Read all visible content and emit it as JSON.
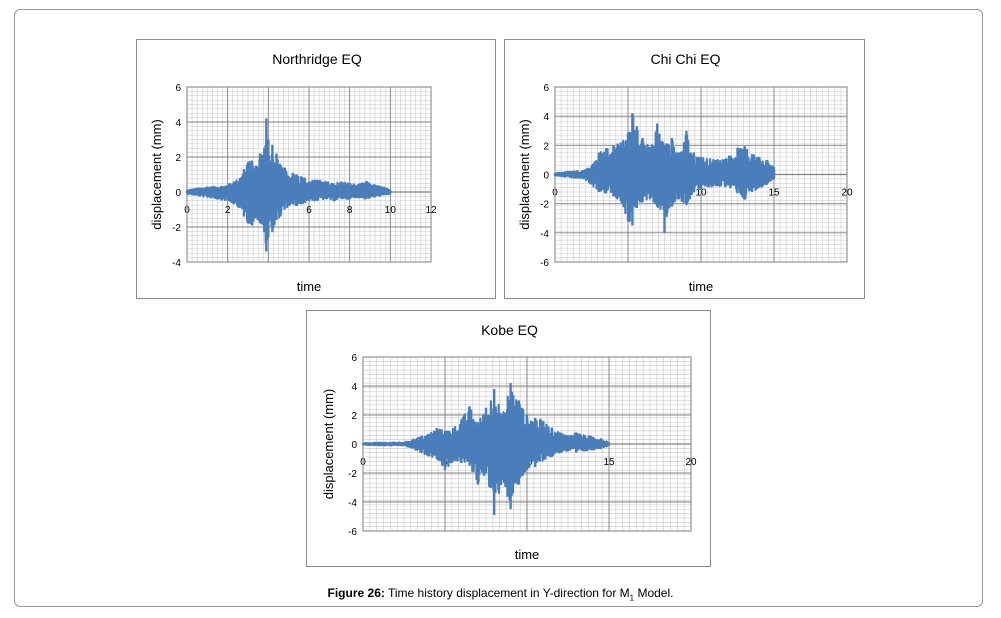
{
  "chart_data": [
    {
      "type": "line",
      "title": "Northridge EQ",
      "xlabel": "time",
      "ylabel": "displacement (mm)",
      "xlim": [
        0,
        12
      ],
      "ylim": [
        -4,
        6
      ],
      "xticks": [
        "0",
        "2",
        "4",
        "6",
        "8",
        "10",
        "12"
      ],
      "yticks": [
        "-4",
        "-2",
        "0",
        "2",
        "4",
        "6"
      ],
      "grid": true,
      "series": [
        {
          "color": "#4a7ebb",
          "x": [
            0,
            0.5,
            1,
            1.5,
            2,
            2.3,
            2.6,
            2.8,
            3.0,
            3.2,
            3.4,
            3.6,
            3.8,
            3.9,
            4.0,
            4.1,
            4.2,
            4.3,
            4.4,
            4.6,
            4.8,
            5.0,
            5.2,
            5.4,
            5.6,
            5.8,
            6.0,
            6.4,
            6.8,
            7.2,
            7.6,
            8.0,
            8.4,
            8.8,
            9.2,
            9.6,
            10.0
          ],
          "ymax": [
            0.1,
            0.2,
            0.3,
            0.3,
            0.4,
            0.6,
            0.8,
            1.3,
            1.7,
            1.8,
            1.5,
            2.2,
            2.5,
            4.2,
            3.0,
            1.8,
            2.7,
            1.5,
            2.2,
            1.5,
            1.4,
            0.9,
            1.1,
            1.0,
            0.9,
            0.8,
            0.6,
            0.7,
            0.6,
            0.5,
            0.6,
            0.5,
            0.4,
            0.6,
            0.4,
            0.3,
            0.1
          ],
          "ymin": [
            -0.1,
            -0.2,
            -0.3,
            -0.4,
            -0.5,
            -0.7,
            -0.9,
            -1.4,
            -1.8,
            -1.9,
            -1.5,
            -1.8,
            -2.3,
            -3.4,
            -2.6,
            -1.5,
            -2.3,
            -1.9,
            -1.6,
            -1.4,
            -1.0,
            -0.8,
            -0.7,
            -0.8,
            -0.7,
            -0.6,
            -0.5,
            -0.5,
            -0.4,
            -0.5,
            -0.4,
            -0.4,
            -0.3,
            -0.4,
            -0.3,
            -0.2,
            -0.1
          ]
        }
      ]
    },
    {
      "type": "line",
      "title": "Chi Chi EQ",
      "xlabel": "time",
      "ylabel": "displacement (mm)",
      "xlim": [
        0,
        20
      ],
      "ylim": [
        -6,
        6
      ],
      "xticks": [
        "0",
        "5",
        "10",
        "15",
        "20"
      ],
      "yticks": [
        "-6",
        "-4",
        "-2",
        "0",
        "2",
        "4",
        "6"
      ],
      "grid": true,
      "series": [
        {
          "color": "#4a7ebb",
          "x": [
            0,
            1,
            2,
            2.5,
            3,
            3.5,
            4,
            4.5,
            5,
            5.3,
            5.6,
            6,
            6.5,
            7,
            7.5,
            8,
            8.5,
            9,
            9.5,
            10,
            11,
            12,
            12.5,
            13,
            13.5,
            14,
            14.5,
            15
          ],
          "ymax": [
            0.1,
            0.2,
            0.3,
            0.6,
            1.5,
            1.8,
            2.0,
            2.2,
            2.8,
            4.2,
            3.3,
            2.5,
            1.9,
            3.5,
            2.0,
            2.5,
            1.5,
            3.0,
            1.5,
            1.2,
            1.0,
            1.3,
            1.8,
            1.9,
            1.4,
            1.2,
            1.0,
            0.5
          ],
          "ymin": [
            -0.1,
            -0.2,
            -0.3,
            -0.7,
            -1.2,
            -1.3,
            -1.5,
            -1.8,
            -3.2,
            -3.5,
            -2.3,
            -1.9,
            -1.7,
            -2.2,
            -4.0,
            -2.2,
            -1.7,
            -2.1,
            -1.2,
            -1.0,
            -0.8,
            -0.9,
            -1.3,
            -1.7,
            -1.2,
            -0.9,
            -0.7,
            -0.3
          ]
        }
      ]
    },
    {
      "type": "line",
      "title": "Kobe EQ",
      "xlabel": "time",
      "ylabel": "displacement (mm)",
      "xlim": [
        0,
        20
      ],
      "ylim": [
        -6,
        6
      ],
      "xticks": [
        "0",
        "5",
        "10",
        "15",
        "20"
      ],
      "yticks": [
        "-6",
        "-4",
        "-2",
        "0",
        "2",
        "4",
        "6"
      ],
      "grid": true,
      "series": [
        {
          "color": "#4a7ebb",
          "x": [
            0,
            1,
            2,
            2.5,
            3,
            3.5,
            4,
            4.5,
            5,
            5.5,
            6,
            6.5,
            7,
            7.5,
            8,
            8.5,
            9,
            9.5,
            10,
            10.5,
            11,
            11.5,
            12,
            12.5,
            13,
            13.5,
            14,
            14.5,
            15
          ],
          "ymax": [
            0.05,
            0.1,
            0.1,
            0.1,
            0.3,
            0.5,
            0.7,
            1.1,
            0.9,
            1.1,
            1.7,
            2.6,
            1.5,
            2.5,
            3.8,
            2.0,
            4.2,
            3.0,
            2.0,
            1.8,
            1.6,
            1.1,
            0.8,
            0.6,
            0.8,
            0.6,
            0.5,
            0.4,
            0.1
          ],
          "ymin": [
            -0.05,
            -0.1,
            -0.1,
            -0.1,
            -0.3,
            -0.6,
            -0.8,
            -1.0,
            -1.8,
            -1.2,
            -1.3,
            -1.5,
            -2.8,
            -2.0,
            -4.9,
            -2.5,
            -4.5,
            -2.8,
            -1.8,
            -1.6,
            -1.1,
            -0.9,
            -0.6,
            -0.5,
            -0.6,
            -0.5,
            -0.4,
            -0.3,
            -0.1
          ]
        }
      ]
    }
  ],
  "caption": {
    "label": "Figure 26:",
    "text_before_sub": " Time history displacement in Y-direction for M",
    "subscript": "1",
    "text_after_sub": " Model."
  }
}
